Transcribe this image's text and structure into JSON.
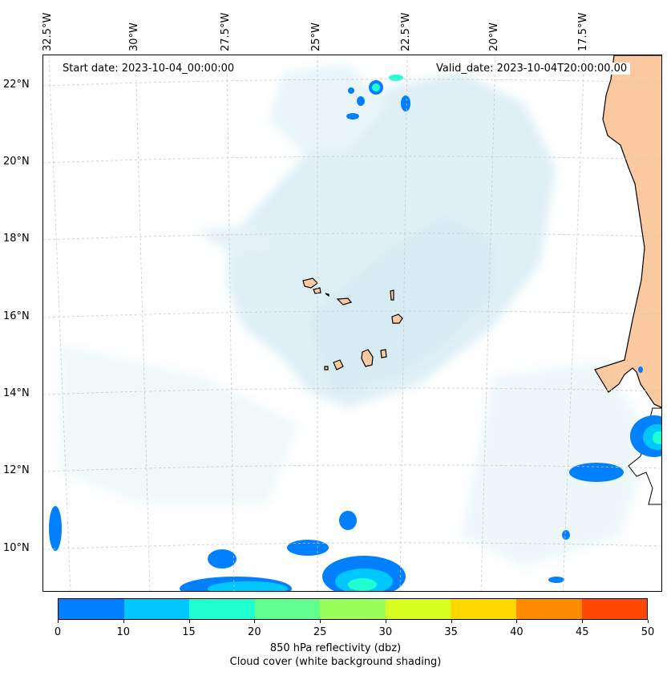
{
  "map": {
    "start_date": "Start date: 2023-10-04_00:00:00",
    "valid_date": "Valid_date: 2023-10-04T20:00:00.00",
    "lon_labels": [
      "32.5°W",
      "30°W",
      "27.5°W",
      "25°W",
      "22.5°W",
      "20°W",
      "17.5°W"
    ],
    "lat_labels": [
      "22°N",
      "20°N",
      "18°N",
      "16°N",
      "14°N",
      "12°N",
      "10°N"
    ],
    "land_color": "#fbc9a0",
    "cloud_color": "#add8e6"
  },
  "colorbar": {
    "ticks": [
      "0",
      "10",
      "15",
      "20",
      "25",
      "30",
      "35",
      "40",
      "45",
      "50"
    ],
    "colors": [
      "#0080ff",
      "#00c8ff",
      "#20ffd0",
      "#60ff90",
      "#98ff58",
      "#d8ff20",
      "#ffd800",
      "#ff8c00",
      "#ff4800"
    ],
    "label1": "850 hPa reflectivity (dbz)",
    "label2": "Cloud cover (white background shading)"
  }
}
